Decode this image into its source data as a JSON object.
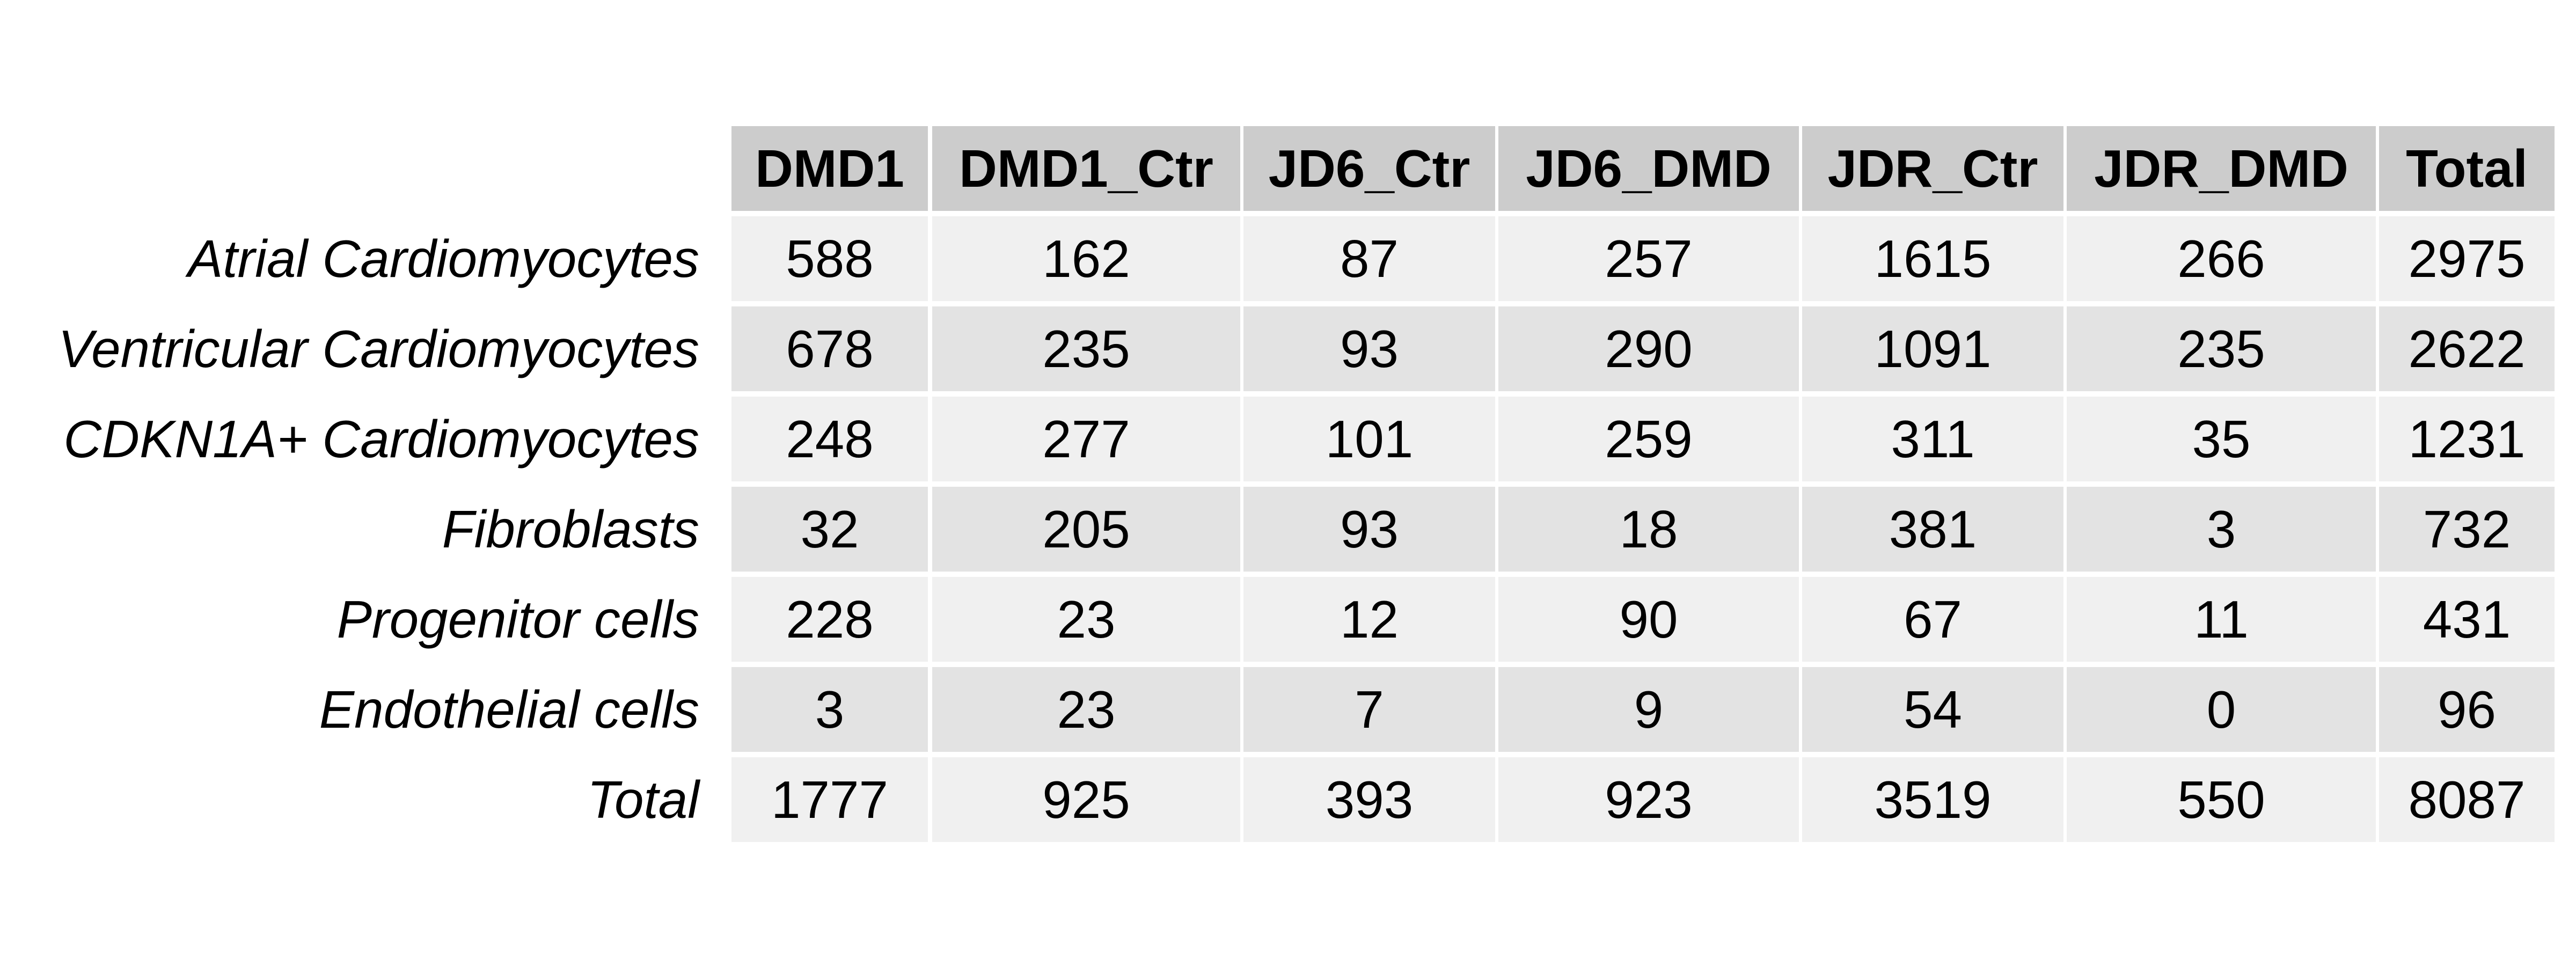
{
  "chart_data": {
    "type": "table",
    "columns": [
      "DMD1",
      "DMD1_Ctr",
      "JD6_Ctr",
      "JD6_DMD",
      "JDR_Ctr",
      "JDR_DMD",
      "Total"
    ],
    "rows": [
      {
        "label": "Atrial Cardiomyocytes",
        "values": [
          "588",
          "162",
          "87",
          "257",
          "1615",
          "266",
          "2975"
        ]
      },
      {
        "label": "Ventricular Cardiomyocytes",
        "values": [
          "678",
          "235",
          "93",
          "290",
          "1091",
          "235",
          "2622"
        ]
      },
      {
        "label": "CDKN1A+ Cardiomyocytes",
        "values": [
          "248",
          "277",
          "101",
          "259",
          "311",
          "35",
          "1231"
        ]
      },
      {
        "label": "Fibroblasts",
        "values": [
          "32",
          "205",
          "93",
          "18",
          "381",
          "3",
          "732"
        ]
      },
      {
        "label": "Progenitor cells",
        "values": [
          "228",
          "23",
          "12",
          "90",
          "67",
          "11",
          "431"
        ]
      },
      {
        "label": "Endothelial cells",
        "values": [
          "3",
          "23",
          "7",
          "9",
          "54",
          "0",
          "96"
        ]
      },
      {
        "label": "Total",
        "values": [
          "1777",
          "925",
          "393",
          "923",
          "3519",
          "550",
          "8087"
        ]
      }
    ]
  },
  "colors": {
    "header_fill": "#cccccc",
    "row_fill_light": "#f0f0f0",
    "row_fill_dark": "#e3e3e3",
    "text": "#000000"
  }
}
